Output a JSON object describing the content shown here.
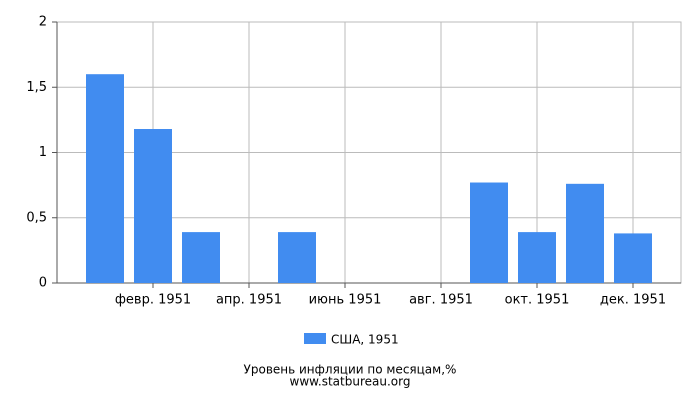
{
  "chart_data": {
    "type": "bar",
    "title": "Уровень инфляции по месяцам,%",
    "source": "www.statbureau.org",
    "categories": [
      null,
      "февр. 1951",
      null,
      "апр. 1951",
      null,
      "июнь 1951",
      null,
      "авг. 1951",
      null,
      "окт. 1951",
      null,
      "дек. 1951"
    ],
    "series": [
      {
        "name": "США, 1951",
        "color": "#418cf0",
        "values": [
          1.6,
          1.18,
          0.39,
          0,
          0.39,
          0,
          0,
          0,
          0.77,
          0.39,
          0.76,
          0.38
        ]
      }
    ],
    "ylim": [
      0,
      2
    ],
    "yticks": [
      0,
      {
        "value": 0.5,
        "label": "0,5"
      },
      1,
      {
        "value": 1.5,
        "label": "1,5"
      },
      2
    ],
    "grid": true
  }
}
